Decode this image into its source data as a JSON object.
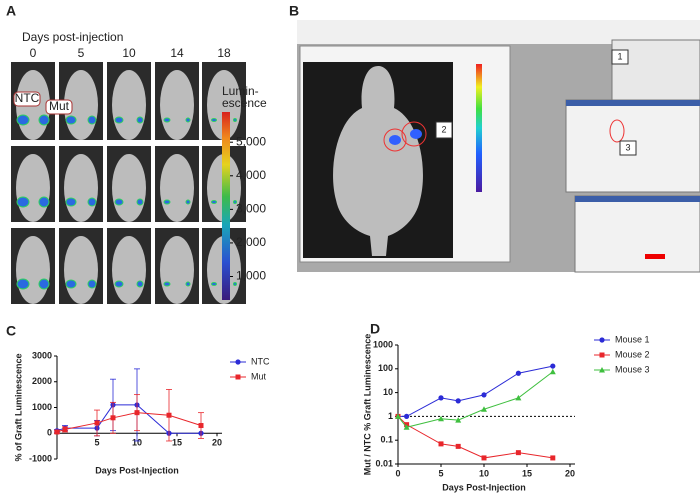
{
  "panel_a": {
    "letter": "A",
    "heading": "Days post-injection",
    "days": [
      "0",
      "5",
      "10",
      "14",
      "18"
    ],
    "groups": [
      "NTC",
      "Mut"
    ],
    "colorbar": {
      "label_lines": [
        "Lumin-",
        "escence"
      ],
      "lim": [
        300,
        5900
      ],
      "ticks": [
        {
          "value": 1000,
          "label": "1,000"
        },
        {
          "value": 2000,
          "label": "2,000"
        },
        {
          "value": 3000,
          "label": "3,000"
        },
        {
          "value": 4000,
          "label": "4,000"
        },
        {
          "value": 5000,
          "label": "5,000"
        }
      ]
    }
  },
  "panel_b": {
    "letter": "B",
    "callouts": [
      "1",
      "2",
      "3"
    ]
  },
  "chart_data": [
    {
      "type": "line",
      "letter": "C",
      "x_label": "Days Post-Injection",
      "y_label": "% of Graft Luminescence",
      "xlim": [
        0,
        20
      ],
      "xticks": [
        5,
        10,
        15,
        20
      ],
      "ylim": [
        -1000,
        3000
      ],
      "yticks": [
        -1000,
        0,
        1000,
        2000,
        3000
      ],
      "log_y": false,
      "x": [
        0,
        1,
        5,
        7,
        10,
        14,
        18
      ],
      "series": [
        {
          "name": "NTC",
          "color": "#2b2bd6",
          "marker": "circle",
          "values": [
            100,
            200,
            200,
            1100,
            1100,
            0,
            0
          ],
          "errors": [
            50,
            100,
            300,
            1000,
            1400,
            0,
            0
          ]
        },
        {
          "name": "Mut",
          "color": "#e8262b",
          "marker": "square",
          "values": [
            50,
            150,
            400,
            600,
            800,
            700,
            300
          ],
          "errors": [
            50,
            100,
            500,
            600,
            700,
            1000,
            500
          ]
        }
      ]
    },
    {
      "type": "line",
      "letter": "D",
      "x_label": "Days Post-Injection",
      "y_label": "Mut / NTC % Graft Luminescence",
      "xlim": [
        0,
        20
      ],
      "xticks": [
        0,
        5,
        10,
        15,
        20
      ],
      "ylim": [
        0.01,
        1000
      ],
      "yticks": [
        0.01,
        0.1,
        1,
        10,
        100,
        1000
      ],
      "log_y": true,
      "reference_line": 1,
      "x": [
        0,
        1,
        5,
        7,
        10,
        14,
        18
      ],
      "series": [
        {
          "name": "Mouse 1",
          "color": "#2b2bd6",
          "marker": "circle",
          "values": [
            1,
            1,
            6,
            4.5,
            8,
            65,
            130
          ]
        },
        {
          "name": "Mouse 2",
          "color": "#e8262b",
          "marker": "square",
          "values": [
            1,
            0.45,
            0.07,
            0.055,
            0.018,
            0.03,
            0.018
          ]
        },
        {
          "name": "Mouse 3",
          "color": "#3fbf3f",
          "marker": "triangle",
          "values": [
            1,
            0.35,
            0.8,
            0.7,
            2,
            6,
            75
          ]
        }
      ]
    }
  ]
}
